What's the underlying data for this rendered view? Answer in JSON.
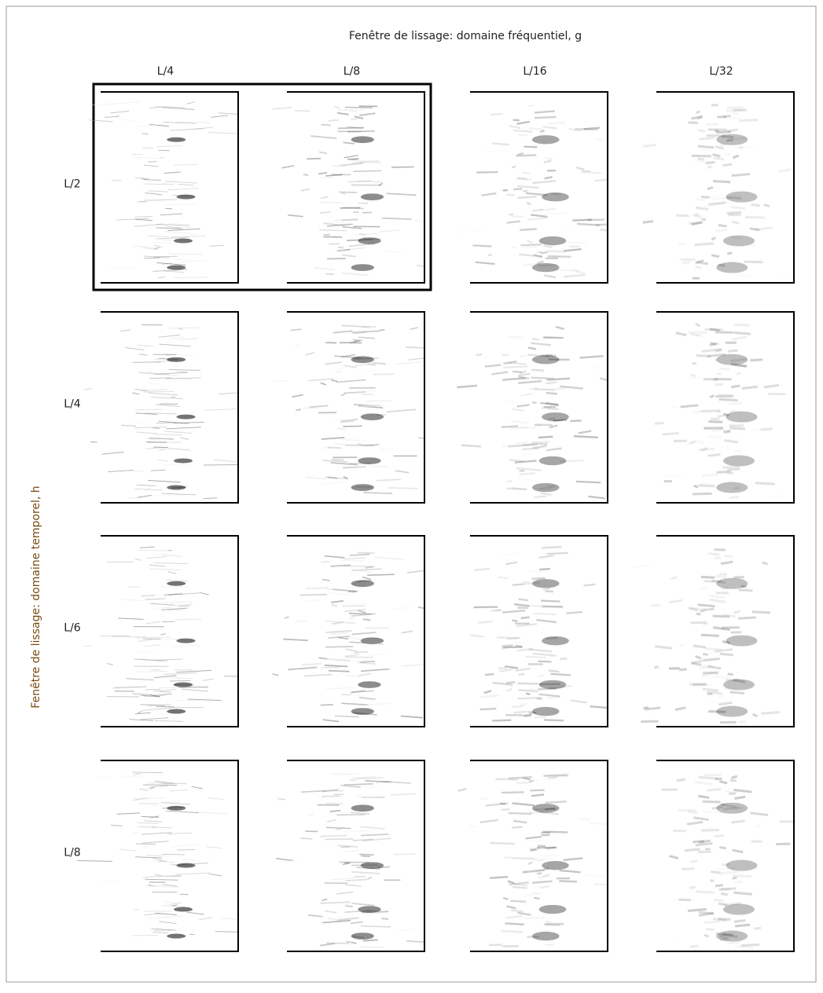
{
  "title": "Fenêtre de lissage: domaine fréquentiel, g",
  "y_axis_label": "Fenêtre de lissage: domaine temporel, h",
  "columns": [
    "L/4",
    "L/8",
    "L/16",
    "L/32"
  ],
  "rows": [
    "L/2",
    "L/4",
    "L/6",
    "L/8"
  ]
}
